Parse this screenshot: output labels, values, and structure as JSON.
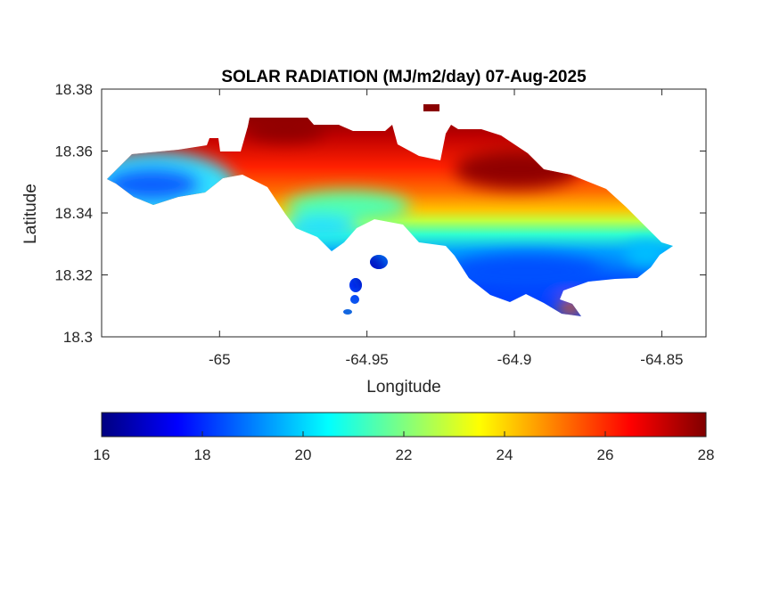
{
  "chart_data": {
    "type": "heatmap",
    "title": "SOLAR RADIATION (MJ/m2/day) 07-Aug-2025",
    "xlabel": "Longitude",
    "ylabel": "Latitude",
    "xlim": [
      -65.04,
      -64.835
    ],
    "ylim": [
      18.3,
      18.38
    ],
    "xticks": [
      -65,
      -64.95,
      -64.9,
      -64.85
    ],
    "xtick_labels": [
      "-65",
      "-64.95",
      "-64.9",
      "-64.85"
    ],
    "yticks": [
      18.3,
      18.32,
      18.34,
      18.36,
      18.38
    ],
    "ytick_labels": [
      "18.3",
      "18.32",
      "18.34",
      "18.36",
      "18.38"
    ],
    "grid": false,
    "colormap": "jet",
    "colorbar": {
      "placement": "bottom",
      "range": [
        16,
        28
      ],
      "ticks": [
        16,
        18,
        20,
        22,
        24,
        26,
        28
      ],
      "tick_labels": [
        "16",
        "18",
        "20",
        "22",
        "24",
        "26",
        "28"
      ]
    },
    "regions": [
      {
        "area": "north-central ridge",
        "value_range": [
          26,
          28
        ]
      },
      {
        "area": "north-east",
        "value_range": [
          26,
          28
        ]
      },
      {
        "area": "central",
        "value_range": [
          22,
          26
        ]
      },
      {
        "area": "west",
        "value_range": [
          18,
          21
        ]
      },
      {
        "area": "south-east coast",
        "value_range": [
          18,
          21
        ]
      },
      {
        "area": "south-east tip",
        "value_range": [
          24,
          26
        ]
      }
    ]
  }
}
